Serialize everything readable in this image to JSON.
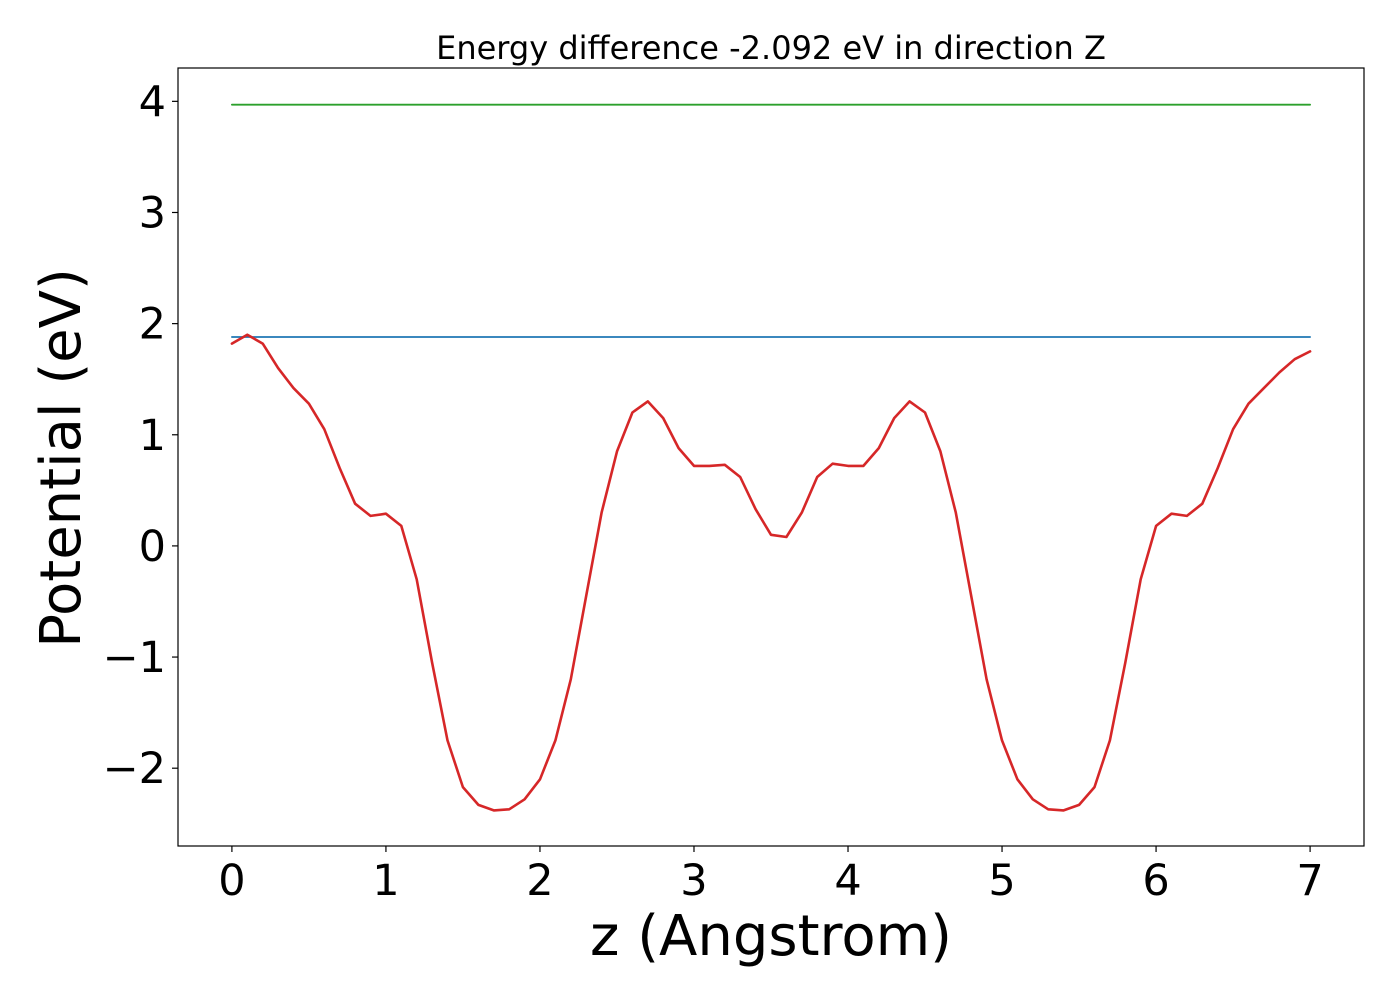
{
  "chart_data": {
    "type": "line",
    "title": "Energy difference -2.092 eV in direction Z",
    "xlabel": "z (Angstrom)",
    "ylabel": "Potential (eV)",
    "xlim": [
      -0.35,
      7.35
    ],
    "ylim": [
      -2.7,
      4.3
    ],
    "xticks": [
      0,
      1,
      2,
      3,
      4,
      5,
      6,
      7
    ],
    "xtick_labels": [
      "0",
      "1",
      "2",
      "3",
      "4",
      "5",
      "6",
      "7"
    ],
    "yticks": [
      -2,
      -1,
      0,
      1,
      2,
      3,
      4
    ],
    "ytick_labels": [
      "−2",
      "−1",
      "0",
      "1",
      "2",
      "3",
      "4"
    ],
    "grid": false,
    "legend": false,
    "series": [
      {
        "color": "#2ca02c",
        "x": [
          0,
          7
        ],
        "y": [
          3.97,
          3.97
        ]
      },
      {
        "color": "#1f77b4",
        "x": [
          0,
          7
        ],
        "y": [
          1.88,
          1.88
        ]
      },
      {
        "color": "#d62728",
        "x": [
          0,
          0.1,
          0.2,
          0.3,
          0.4,
          0.5,
          0.6,
          0.7,
          0.8,
          0.9,
          1.0,
          1.1,
          1.2,
          1.3,
          1.4,
          1.5,
          1.6,
          1.7,
          1.8,
          1.9,
          2.0,
          2.1,
          2.2,
          2.3,
          2.4,
          2.5,
          2.6,
          2.7,
          2.8,
          2.9,
          3.0,
          3.1,
          3.2,
          3.3,
          3.4,
          3.5,
          3.6,
          3.7,
          3.8,
          3.9,
          4.0,
          4.1,
          4.2,
          4.3,
          4.4,
          4.5,
          4.6,
          4.7,
          4.8,
          4.9,
          5.0,
          5.1,
          5.2,
          5.3,
          5.4,
          5.5,
          5.6,
          5.7,
          5.8,
          5.9,
          6.0,
          6.1,
          6.2,
          6.3,
          6.4,
          6.5,
          6.6,
          6.7,
          6.8,
          6.9,
          7.0
        ],
        "y": [
          1.82,
          1.9,
          1.82,
          1.6,
          1.42,
          1.28,
          1.05,
          0.7,
          0.38,
          0.27,
          0.29,
          0.18,
          -0.3,
          -1.05,
          -1.75,
          -2.17,
          -2.33,
          -2.38,
          -2.37,
          -2.28,
          -2.1,
          -1.75,
          -1.2,
          -0.45,
          0.3,
          0.85,
          1.2,
          1.3,
          1.15,
          0.88,
          0.72,
          0.72,
          0.73,
          0.62,
          0.33,
          0.1,
          0.08,
          0.3,
          0.62,
          0.74,
          0.72,
          0.72,
          0.88,
          1.15,
          1.3,
          1.2,
          0.85,
          0.3,
          -0.45,
          -1.2,
          -1.75,
          -2.1,
          -2.28,
          -2.37,
          -2.38,
          -2.33,
          -2.17,
          -1.75,
          -1.05,
          -0.3,
          0.18,
          0.29,
          0.27,
          0.38,
          0.7,
          1.05,
          1.28,
          1.42,
          1.56,
          1.68,
          1.75
        ]
      }
    ]
  }
}
